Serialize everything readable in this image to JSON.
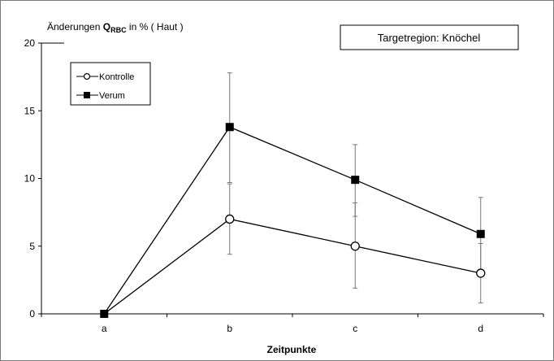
{
  "chart_data": {
    "type": "line",
    "title_prefix": "Änderungen ",
    "title_q": "Q",
    "title_sub": "RBC",
    "title_suffix": " in % ( Haut )",
    "region_label": "Targetregion:  Knöchel",
    "xlabel": "Zeitpunkte",
    "categories": [
      "a",
      "b",
      "c",
      "d"
    ],
    "ylim": [
      0,
      20
    ],
    "yticks": [
      0,
      5,
      10,
      15,
      20
    ],
    "grid": false,
    "legend_position": "top-left",
    "series": [
      {
        "name": "Kontrolle",
        "marker": "open-circle",
        "values": [
          0,
          7.0,
          5.0,
          3.0
        ],
        "error_low": [
          0,
          4.4,
          1.9,
          0.8
        ],
        "error_high": [
          0,
          9.6,
          8.2,
          5.2
        ]
      },
      {
        "name": "Verum",
        "marker": "filled-square",
        "values": [
          0,
          13.8,
          9.9,
          5.9
        ],
        "error_low": [
          0,
          9.7,
          7.2,
          3.2
        ],
        "error_high": [
          0,
          17.8,
          12.5,
          8.6
        ]
      }
    ],
    "colors": {
      "line": "#000000",
      "axis": "#000000",
      "frame": "#7a7a7a"
    }
  }
}
